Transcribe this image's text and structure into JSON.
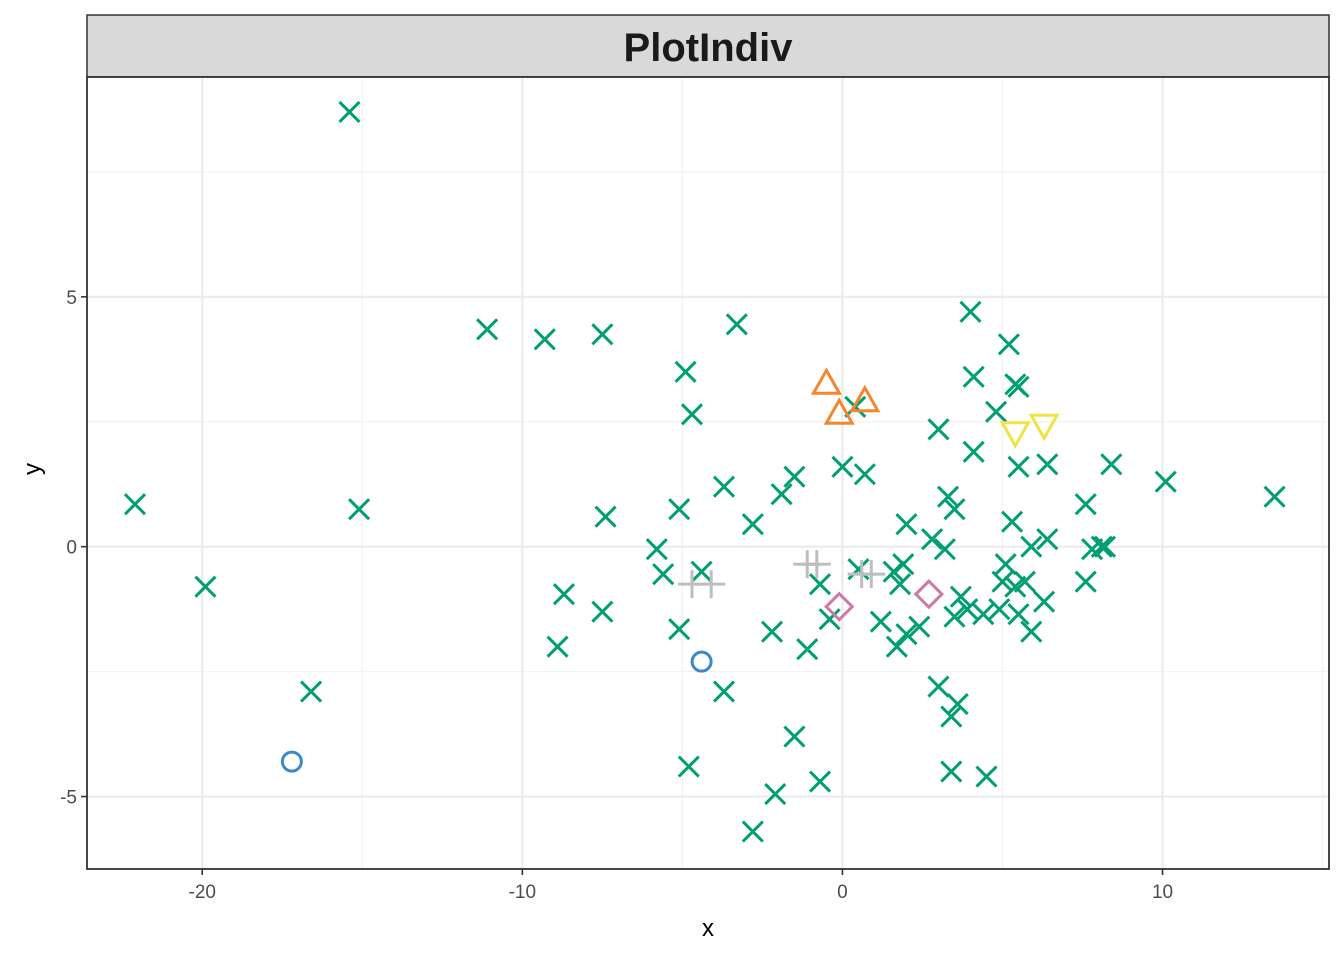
{
  "chart_data": {
    "type": "scatter",
    "title": "PlotIndiv",
    "xlabel": "x",
    "ylabel": "y",
    "xlim": [
      -23.6,
      15.2
    ],
    "ylim": [
      -6.45,
      9.4
    ],
    "x_ticks": [
      -20,
      -10,
      0,
      10
    ],
    "y_ticks": [
      -5,
      0,
      5
    ],
    "x_tick_labels": [
      "-20",
      "-10",
      "0",
      "10"
    ],
    "y_tick_labels": [
      "-5",
      "0",
      "5"
    ],
    "grid": true,
    "legend": "none",
    "series": [
      {
        "shape": "cross",
        "color": "#009E73",
        "points": [
          [
            -15.4,
            8.7
          ],
          [
            -22.1,
            0.85
          ],
          [
            -19.9,
            -0.8
          ],
          [
            -16.6,
            -2.9
          ],
          [
            -15.1,
            0.75
          ],
          [
            -11.1,
            4.35
          ],
          [
            -9.3,
            4.15
          ],
          [
            -7.5,
            4.25
          ],
          [
            -7.4,
            0.6
          ],
          [
            -7.5,
            -1.3
          ],
          [
            -8.7,
            -0.95
          ],
          [
            -8.9,
            -2.0
          ],
          [
            -5.8,
            -0.05
          ],
          [
            -5.6,
            -0.55
          ],
          [
            -5.1,
            0.75
          ],
          [
            -5.1,
            -1.65
          ],
          [
            -4.9,
            3.5
          ],
          [
            -4.7,
            2.65
          ],
          [
            -4.4,
            -0.5
          ],
          [
            -4.8,
            -4.4
          ],
          [
            -3.7,
            1.2
          ],
          [
            -3.7,
            -2.9
          ],
          [
            -3.3,
            4.45
          ],
          [
            -2.8,
            0.45
          ],
          [
            -2.8,
            -5.7
          ],
          [
            -2.2,
            -1.7
          ],
          [
            -2.1,
            -4.95
          ],
          [
            -1.9,
            1.05
          ],
          [
            -1.5,
            1.4
          ],
          [
            -1.5,
            -3.8
          ],
          [
            -1.1,
            -2.05
          ],
          [
            -0.7,
            -0.75
          ],
          [
            -0.7,
            -4.7
          ],
          [
            -0.4,
            -1.45
          ],
          [
            0.0,
            1.6
          ],
          [
            0.4,
            2.8
          ],
          [
            0.5,
            -0.45
          ],
          [
            0.7,
            1.45
          ],
          [
            1.2,
            -1.5
          ],
          [
            1.6,
            -0.5
          ],
          [
            1.8,
            -0.75
          ],
          [
            1.7,
            -2.0
          ],
          [
            1.9,
            -0.35
          ],
          [
            2.0,
            -1.75
          ],
          [
            2.0,
            0.45
          ],
          [
            2.4,
            -1.6
          ],
          [
            2.8,
            0.15
          ],
          [
            3.0,
            2.35
          ],
          [
            3.0,
            -2.8
          ],
          [
            3.2,
            -0.05
          ],
          [
            3.3,
            1.0
          ],
          [
            3.4,
            -3.4
          ],
          [
            3.4,
            -4.5
          ],
          [
            3.5,
            0.75
          ],
          [
            3.6,
            -3.15
          ],
          [
            3.5,
            -1.4
          ],
          [
            3.7,
            -1.0
          ],
          [
            3.9,
            -1.25
          ],
          [
            4.0,
            4.7
          ],
          [
            4.1,
            3.4
          ],
          [
            4.1,
            1.9
          ],
          [
            4.4,
            -1.35
          ],
          [
            4.5,
            -4.6
          ],
          [
            4.8,
            2.7
          ],
          [
            4.9,
            -1.25
          ],
          [
            5.0,
            -0.7
          ],
          [
            5.1,
            -0.35
          ],
          [
            5.2,
            4.05
          ],
          [
            5.3,
            0.5
          ],
          [
            5.5,
            -1.35
          ],
          [
            5.4,
            -0.8
          ],
          [
            5.4,
            3.25
          ],
          [
            5.5,
            3.2
          ],
          [
            5.5,
            1.6
          ],
          [
            5.7,
            -0.7
          ],
          [
            5.9,
            -1.7
          ],
          [
            5.9,
            0.0
          ],
          [
            6.3,
            -1.1
          ],
          [
            6.4,
            0.15
          ],
          [
            6.4,
            1.65
          ],
          [
            7.6,
            0.85
          ],
          [
            7.6,
            -0.7
          ],
          [
            7.8,
            -0.05
          ],
          [
            8.1,
            0.0
          ],
          [
            8.4,
            1.65
          ],
          [
            8.2,
            0.0
          ],
          [
            10.1,
            1.3
          ],
          [
            13.5,
            1.0
          ]
        ]
      },
      {
        "shape": "circle",
        "color": "#3A89C9",
        "points": [
          [
            -17.2,
            -4.3
          ],
          [
            -4.4,
            -2.3
          ]
        ]
      },
      {
        "shape": "triangle-up",
        "color": "#F5862E",
        "points": [
          [
            -0.5,
            3.25
          ],
          [
            -0.1,
            2.65
          ],
          [
            0.7,
            2.9
          ]
        ]
      },
      {
        "shape": "triangle-down",
        "color": "#F0E442",
        "points": [
          [
            5.4,
            2.3
          ],
          [
            6.3,
            2.45
          ]
        ]
      },
      {
        "shape": "diamond",
        "color": "#CC79A7",
        "points": [
          [
            -0.1,
            -1.2
          ],
          [
            2.7,
            -0.95
          ]
        ]
      },
      {
        "shape": "plus",
        "color": "#BEBEBE",
        "points": [
          [
            -4.7,
            -0.75
          ],
          [
            -4.1,
            -0.75
          ],
          [
            -1.1,
            -0.35
          ],
          [
            -0.8,
            -0.35
          ],
          [
            0.6,
            -0.55
          ],
          [
            0.9,
            -0.55
          ]
        ]
      }
    ]
  }
}
